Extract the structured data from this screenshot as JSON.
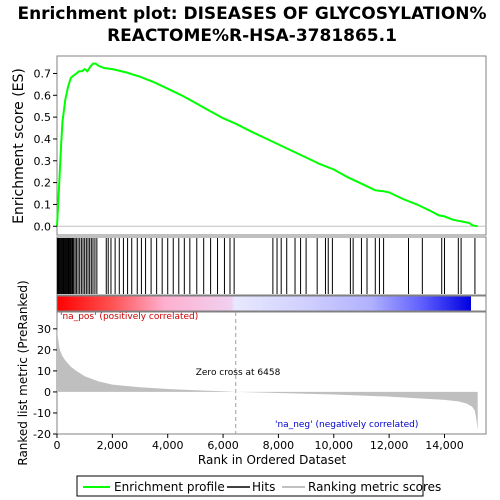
{
  "chart_data": {
    "type": "line",
    "title_line1": "Enrichment plot: DISEASES OF GLYCOSYLATION%",
    "title_line2": "REACTOME%R-HSA-3781865.1",
    "es_ylabel": "Enrichment score (ES)",
    "metric_ylabel_line1": "Ranked list metric (PreRanked)",
    "xlabel": "Rank in Ordered Dataset",
    "x_range": [
      0,
      15500
    ],
    "es_ylim": [
      -0.04,
      0.78
    ],
    "metric_ylim": [
      -20,
      38
    ],
    "es_yticks": [
      "0.0",
      "0.1",
      "0.2",
      "0.3",
      "0.4",
      "0.5",
      "0.6",
      "0.7"
    ],
    "metric_yticks": [
      "30",
      "20",
      "10",
      "0",
      "-10",
      "-20"
    ],
    "xticks": [
      "0",
      "2,000",
      "4,000",
      "6,000",
      "8,000",
      "10,000",
      "12,000",
      "14,000"
    ],
    "xtick_values": [
      0,
      2000,
      4000,
      6000,
      8000,
      10000,
      12000,
      14000
    ],
    "enrichment_profile": {
      "x": [
        0,
        50,
        100,
        150,
        200,
        300,
        400,
        500,
        600,
        700,
        800,
        900,
        1000,
        1100,
        1200,
        1300,
        1400,
        1500,
        1700,
        2000,
        2500,
        3000,
        3500,
        4000,
        4500,
        5000,
        5500,
        6000,
        6458,
        7000,
        7500,
        8000,
        8500,
        9000,
        9500,
        10000,
        10500,
        11000,
        11500,
        11800,
        12000,
        12500,
        13000,
        13500,
        13800,
        14000,
        14300,
        14500,
        14700,
        14900,
        15000,
        15200
      ],
      "y": [
        0.0,
        0.12,
        0.25,
        0.38,
        0.48,
        0.58,
        0.64,
        0.68,
        0.69,
        0.7,
        0.71,
        0.71,
        0.72,
        0.71,
        0.73,
        0.745,
        0.745,
        0.735,
        0.725,
        0.72,
        0.705,
        0.685,
        0.66,
        0.63,
        0.6,
        0.565,
        0.53,
        0.495,
        0.47,
        0.435,
        0.405,
        0.375,
        0.345,
        0.315,
        0.285,
        0.26,
        0.225,
        0.195,
        0.165,
        0.16,
        0.155,
        0.125,
        0.1,
        0.07,
        0.05,
        0.045,
        0.03,
        0.025,
        0.02,
        0.015,
        0.005,
        0.0
      ]
    },
    "hit_ranks": [
      15,
      40,
      70,
      100,
      130,
      160,
      190,
      220,
      250,
      280,
      310,
      340,
      370,
      400,
      430,
      460,
      490,
      520,
      560,
      600,
      650,
      700,
      760,
      820,
      880,
      940,
      1000,
      1060,
      1120,
      1180,
      1240,
      1300,
      1370,
      1440,
      1780,
      1850,
      1950,
      2100,
      2250,
      2400,
      2550,
      2700,
      2900,
      3050,
      3200,
      3400,
      3600,
      3800,
      4000,
      4200,
      4400,
      4600,
      4800,
      5050,
      5300,
      5550,
      5800,
      6050,
      6250,
      6400,
      7800,
      7950,
      8100,
      8300,
      8600,
      8800,
      9000,
      9400,
      9700,
      9800,
      9950,
      10600,
      10700,
      11000,
      11200,
      11500,
      11650,
      11800,
      12700,
      13200,
      13900,
      14000,
      14500,
      14600,
      15100
    ],
    "zero_cross_label": "Zero cross at 6458",
    "zero_cross_rank": 6458,
    "pos_label": "'na_pos' (positively correlated)",
    "neg_label": "'na_neg' (negatively correlated)",
    "metric_curve": {
      "x": [
        0,
        50,
        100,
        200,
        300,
        500,
        700,
        1000,
        1500,
        2000,
        3000,
        4000,
        5000,
        6000,
        6458,
        8000,
        10000,
        12000,
        13000,
        14000,
        14500,
        14800,
        15000,
        15100,
        15150,
        15200
      ],
      "y": [
        30,
        24,
        20,
        17,
        15,
        12,
        10,
        7.5,
        5,
        3.5,
        2.2,
        1.4,
        0.8,
        0.3,
        0,
        -0.5,
        -1.2,
        -2.2,
        -3,
        -3.8,
        -4.5,
        -5.5,
        -7,
        -9,
        -13,
        -18
      ]
    },
    "legend": [
      "Enrichment profile",
      "Hits",
      "Ranking metric scores"
    ],
    "colors": {
      "profile": "#00ff00",
      "hits": "#000000",
      "pos": "#ff0000",
      "neg": "#0000ff",
      "metric_fill": "#bfbfbf",
      "zero_line": "#a0a0a0"
    }
  }
}
